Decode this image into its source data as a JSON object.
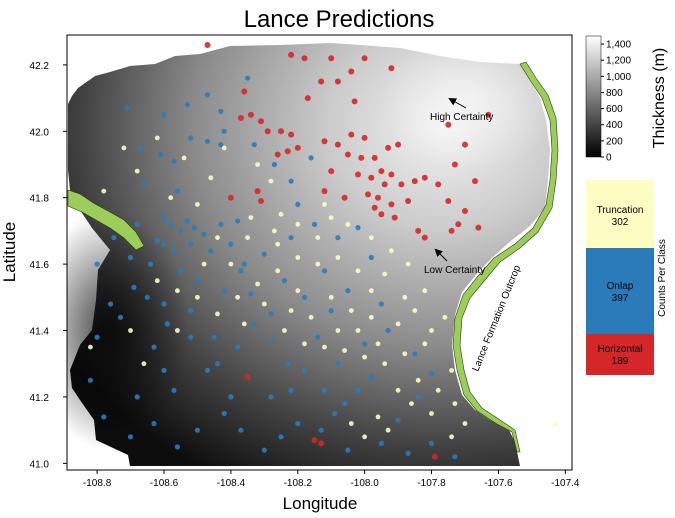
{
  "chart_data": {
    "type": "scatter",
    "title": "Lance Predictions",
    "xlabel": "Longitude",
    "ylabel": "Latitude",
    "xlim": [
      -108.89,
      -107.38
    ],
    "ylim": [
      40.98,
      42.29
    ],
    "x_ticks": [
      -108.8,
      -108.6,
      -108.4,
      -108.2,
      -108.0,
      -107.8,
      -107.6,
      -107.4
    ],
    "x_tick_labels": [
      "-108.8",
      "-108.6",
      "-108.4",
      "-108.2",
      "-108.0",
      "-107.8",
      "-107.6",
      "-107.4"
    ],
    "y_ticks": [
      41.0,
      41.2,
      41.4,
      41.6,
      41.8,
      42.0,
      42.2
    ],
    "y_tick_labels": [
      "41.0",
      "41.2",
      "41.4",
      "41.6",
      "41.8",
      "42.0",
      "42.2"
    ],
    "grid": false,
    "background_raster": "thickness surface, grayscale, darker = thinner",
    "colorbar": {
      "label": "Thickness (m)",
      "range": [
        0,
        1500
      ],
      "ticks": [
        0,
        200,
        400,
        600,
        800,
        1000,
        1200,
        1400
      ],
      "tick_labels": [
        "0",
        "200",
        "400",
        "600",
        "800",
        "1,000",
        "1,200",
        "1,400"
      ],
      "low_color": "#000000",
      "high_color": "#ffffff"
    },
    "class_legend": {
      "title": "Counts Per Class",
      "classes": [
        {
          "name": "Truncation",
          "count": 302,
          "color": "#fdfdc4"
        },
        {
          "name": "Onlap",
          "count": 397,
          "color": "#2b7bba"
        },
        {
          "name": "Horizontal",
          "count": 189,
          "color": "#d62728"
        }
      ]
    },
    "annotations": [
      {
        "text": "High Certainty",
        "x": -107.78,
        "y": 42.09,
        "arrow_to": [
          -107.74,
          42.17
        ]
      },
      {
        "text": "Low Certainty",
        "x": -107.77,
        "y": 41.56,
        "arrow_to": [
          -107.81,
          41.64
        ]
      },
      {
        "text": "Lance Formation Outcrop",
        "x": -107.66,
        "y": 41.45,
        "rotation": "rotated"
      }
    ],
    "outcrop_color": "#9ccd5a",
    "series": [
      {
        "name": "Horizontal",
        "color": "#d62728",
        "points": [
          [
            -108.22,
            42.23
          ],
          [
            -108.18,
            42.22
          ],
          [
            -108.1,
            42.22
          ],
          [
            -108.04,
            42.18
          ],
          [
            -108.0,
            42.22
          ],
          [
            -107.92,
            42.19
          ],
          [
            -108.13,
            42.15
          ],
          [
            -108.08,
            42.15
          ],
          [
            -108.17,
            42.1
          ],
          [
            -108.03,
            42.09
          ],
          [
            -108.36,
            42.12
          ],
          [
            -108.37,
            42.04
          ],
          [
            -108.34,
            42.05
          ],
          [
            -108.31,
            42.03
          ],
          [
            -108.29,
            42.0
          ],
          [
            -108.25,
            42.0
          ],
          [
            -108.22,
            41.99
          ],
          [
            -108.26,
            41.93
          ],
          [
            -108.23,
            41.94
          ],
          [
            -108.2,
            41.95
          ],
          [
            -108.12,
            41.97
          ],
          [
            -108.08,
            41.96
          ],
          [
            -108.04,
            41.99
          ],
          [
            -108.0,
            41.98
          ],
          [
            -108.05,
            41.93
          ],
          [
            -108.01,
            41.92
          ],
          [
            -107.97,
            41.92
          ],
          [
            -107.93,
            41.95
          ],
          [
            -107.9,
            41.96
          ],
          [
            -107.95,
            41.88
          ],
          [
            -107.92,
            41.87
          ],
          [
            -108.02,
            41.87
          ],
          [
            -107.98,
            41.86
          ],
          [
            -107.94,
            41.84
          ],
          [
            -107.89,
            41.84
          ],
          [
            -107.99,
            41.81
          ],
          [
            -107.96,
            41.8
          ],
          [
            -107.97,
            41.77
          ],
          [
            -107.92,
            41.78
          ],
          [
            -107.95,
            41.75
          ],
          [
            -107.91,
            41.74
          ],
          [
            -107.87,
            41.79
          ],
          [
            -107.85,
            41.85
          ],
          [
            -107.82,
            41.86
          ],
          [
            -107.78,
            41.84
          ],
          [
            -107.75,
            41.79
          ],
          [
            -107.72,
            41.72
          ],
          [
            -107.7,
            41.76
          ],
          [
            -107.67,
            41.85
          ],
          [
            -107.73,
            41.9
          ],
          [
            -107.7,
            41.96
          ],
          [
            -107.75,
            42.02
          ],
          [
            -107.63,
            42.05
          ],
          [
            -107.74,
            41.7
          ],
          [
            -107.66,
            41.71
          ],
          [
            -107.82,
            41.68
          ],
          [
            -107.84,
            41.7
          ],
          [
            -108.12,
            41.82
          ],
          [
            -108.06,
            41.8
          ],
          [
            -108.1,
            41.88
          ],
          [
            -108.32,
            41.82
          ],
          [
            -108.31,
            41.79
          ],
          [
            -108.4,
            41.8
          ],
          [
            -108.15,
            41.07
          ],
          [
            -108.13,
            41.06
          ],
          [
            -108.35,
            41.26
          ],
          [
            -107.79,
            41.02
          ],
          [
            -108.47,
            42.26
          ]
        ]
      },
      {
        "name": "Onlap",
        "color": "#2b7bba",
        "points": [
          [
            -108.71,
            42.07
          ],
          [
            -108.67,
            41.95
          ],
          [
            -108.6,
            42.05
          ],
          [
            -108.53,
            42.08
          ],
          [
            -108.52,
            41.98
          ],
          [
            -108.47,
            42.11
          ],
          [
            -108.42,
            42.0
          ],
          [
            -108.43,
            41.96
          ],
          [
            -108.47,
            41.97
          ],
          [
            -108.57,
            41.91
          ],
          [
            -108.61,
            41.93
          ],
          [
            -108.6,
            41.74
          ],
          [
            -108.58,
            41.72
          ],
          [
            -108.55,
            41.7
          ],
          [
            -108.53,
            41.73
          ],
          [
            -108.51,
            41.71
          ],
          [
            -108.48,
            41.69
          ],
          [
            -108.62,
            41.67
          ],
          [
            -108.6,
            41.66
          ],
          [
            -108.57,
            41.64
          ],
          [
            -108.52,
            41.66
          ],
          [
            -108.46,
            41.64
          ],
          [
            -108.43,
            41.72
          ],
          [
            -108.38,
            41.73
          ],
          [
            -108.4,
            41.66
          ],
          [
            -108.36,
            41.6
          ],
          [
            -108.5,
            41.55
          ],
          [
            -108.55,
            41.58
          ],
          [
            -108.64,
            41.6
          ],
          [
            -108.69,
            41.53
          ],
          [
            -108.76,
            41.48
          ],
          [
            -108.73,
            41.44
          ],
          [
            -108.8,
            41.38
          ],
          [
            -108.63,
            41.35
          ],
          [
            -108.59,
            41.42
          ],
          [
            -108.52,
            41.46
          ],
          [
            -108.45,
            41.38
          ],
          [
            -108.38,
            41.35
          ],
          [
            -108.33,
            41.42
          ],
          [
            -108.28,
            41.37
          ],
          [
            -108.23,
            41.3
          ],
          [
            -108.18,
            41.28
          ],
          [
            -108.12,
            41.22
          ],
          [
            -108.06,
            41.18
          ],
          [
            -108.02,
            41.22
          ],
          [
            -107.98,
            41.26
          ],
          [
            -108.09,
            41.15
          ],
          [
            -108.13,
            41.1
          ],
          [
            -108.2,
            41.12
          ],
          [
            -108.25,
            41.08
          ],
          [
            -108.3,
            41.04
          ],
          [
            -108.37,
            41.1
          ],
          [
            -108.42,
            41.15
          ],
          [
            -108.5,
            41.1
          ],
          [
            -108.56,
            41.05
          ],
          [
            -108.63,
            41.12
          ],
          [
            -108.68,
            41.2
          ],
          [
            -108.7,
            41.08
          ],
          [
            -108.78,
            41.14
          ],
          [
            -108.82,
            41.25
          ],
          [
            -108.57,
            41.22
          ],
          [
            -108.47,
            41.28
          ],
          [
            -108.4,
            41.2
          ],
          [
            -108.28,
            41.2
          ],
          [
            -108.05,
            41.04
          ],
          [
            -107.95,
            41.06
          ],
          [
            -107.87,
            41.03
          ],
          [
            -107.8,
            41.06
          ],
          [
            -107.73,
            41.02
          ],
          [
            -107.9,
            41.13
          ],
          [
            -108.33,
            41.96
          ],
          [
            -108.27,
            41.9
          ],
          [
            -108.22,
            41.85
          ],
          [
            -108.16,
            41.92
          ],
          [
            -108.2,
            41.78
          ],
          [
            -108.15,
            41.72
          ],
          [
            -108.08,
            41.68
          ],
          [
            -108.02,
            41.71
          ],
          [
            -107.98,
            41.62
          ],
          [
            -108.22,
            41.68
          ],
          [
            -108.3,
            41.63
          ],
          [
            -108.34,
            41.51
          ],
          [
            -108.24,
            41.55
          ],
          [
            -108.18,
            41.5
          ],
          [
            -108.12,
            41.58
          ],
          [
            -108.05,
            41.52
          ],
          [
            -107.95,
            41.48
          ],
          [
            -107.93,
            41.4
          ],
          [
            -107.85,
            41.33
          ],
          [
            -108.0,
            41.36
          ],
          [
            -108.43,
            42.06
          ],
          [
            -108.35,
            42.16
          ],
          [
            -108.56,
            41.82
          ],
          [
            -108.66,
            41.84
          ],
          [
            -108.8,
            41.6
          ],
          [
            -108.75,
            41.68
          ],
          [
            -108.52,
            41.38
          ],
          [
            -108.44,
            41.3
          ],
          [
            -108.6,
            41.28
          ],
          [
            -108.14,
            41.38
          ],
          [
            -108.1,
            41.46
          ],
          [
            -108.28,
            41.45
          ],
          [
            -108.68,
            41.72
          ],
          [
            -108.7,
            41.62
          ],
          [
            -108.65,
            41.5
          ],
          [
            -108.6,
            41.48
          ],
          [
            -108.37,
            41.58
          ],
          [
            -108.42,
            41.52
          ],
          [
            -108.08,
            41.3
          ],
          [
            -107.84,
            41.2
          ],
          [
            -107.8,
            41.27
          ],
          [
            -108.22,
            41.22
          ]
        ]
      },
      {
        "name": "Truncation",
        "color": "#fdfdc4",
        "points": [
          [
            -108.42,
            41.95
          ],
          [
            -108.32,
            41.9
          ],
          [
            -108.28,
            41.85
          ],
          [
            -108.25,
            41.75
          ],
          [
            -108.34,
            41.74
          ],
          [
            -108.27,
            41.7
          ],
          [
            -108.2,
            41.72
          ],
          [
            -108.14,
            41.68
          ],
          [
            -108.1,
            41.74
          ],
          [
            -108.05,
            41.72
          ],
          [
            -107.98,
            41.68
          ],
          [
            -107.92,
            41.64
          ],
          [
            -107.87,
            41.6
          ],
          [
            -107.94,
            41.57
          ],
          [
            -108.02,
            41.58
          ],
          [
            -108.08,
            41.62
          ],
          [
            -108.14,
            41.6
          ],
          [
            -108.2,
            41.62
          ],
          [
            -108.26,
            41.58
          ],
          [
            -108.32,
            41.54
          ],
          [
            -108.38,
            41.5
          ],
          [
            -108.3,
            41.48
          ],
          [
            -108.22,
            41.46
          ],
          [
            -108.16,
            41.44
          ],
          [
            -108.1,
            41.5
          ],
          [
            -108.04,
            41.46
          ],
          [
            -107.98,
            41.44
          ],
          [
            -107.9,
            41.42
          ],
          [
            -107.85,
            41.46
          ],
          [
            -107.8,
            41.4
          ],
          [
            -107.76,
            41.44
          ],
          [
            -107.82,
            41.36
          ],
          [
            -107.88,
            41.33
          ],
          [
            -107.94,
            41.3
          ],
          [
            -108.0,
            41.32
          ],
          [
            -108.06,
            41.34
          ],
          [
            -108.12,
            41.35
          ],
          [
            -108.18,
            41.36
          ],
          [
            -108.24,
            41.4
          ],
          [
            -108.36,
            41.42
          ],
          [
            -108.44,
            41.45
          ],
          [
            -108.5,
            41.5
          ],
          [
            -108.56,
            41.52
          ],
          [
            -108.62,
            41.55
          ],
          [
            -108.48,
            41.6
          ],
          [
            -108.44,
            41.68
          ],
          [
            -108.5,
            41.78
          ],
          [
            -108.46,
            41.86
          ],
          [
            -108.54,
            41.92
          ],
          [
            -108.62,
            41.98
          ],
          [
            -108.72,
            41.95
          ],
          [
            -108.78,
            41.82
          ],
          [
            -108.82,
            41.35
          ],
          [
            -108.7,
            41.4
          ],
          [
            -108.66,
            41.3
          ],
          [
            -107.84,
            41.25
          ],
          [
            -107.78,
            41.22
          ],
          [
            -107.74,
            41.28
          ],
          [
            -107.8,
            41.15
          ],
          [
            -107.86,
            41.18
          ],
          [
            -107.9,
            41.22
          ],
          [
            -107.96,
            41.14
          ],
          [
            -108.04,
            41.12
          ],
          [
            -108.0,
            41.08
          ],
          [
            -107.93,
            41.1
          ],
          [
            -107.73,
            41.18
          ],
          [
            -107.7,
            41.12
          ],
          [
            -107.74,
            41.08
          ],
          [
            -108.08,
            41.4
          ],
          [
            -108.2,
            41.52
          ],
          [
            -108.26,
            41.66
          ],
          [
            -108.35,
            41.68
          ],
          [
            -108.12,
            41.78
          ],
          [
            -107.98,
            41.52
          ],
          [
            -107.96,
            41.36
          ],
          [
            -108.56,
            41.4
          ],
          [
            -108.4,
            41.6
          ],
          [
            -108.58,
            41.8
          ],
          [
            -108.68,
            41.88
          ],
          [
            -107.43,
            41.12
          ],
          [
            -107.82,
            41.52
          ],
          [
            -107.88,
            41.5
          ],
          [
            -108.02,
            41.4
          ]
        ]
      }
    ]
  }
}
